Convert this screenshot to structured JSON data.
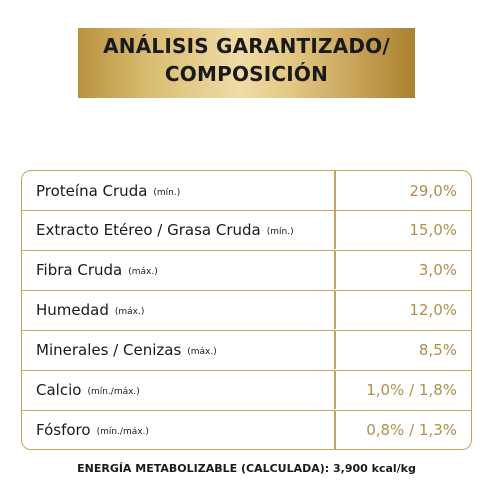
{
  "header": {
    "line1": "ANÁLISIS GARANTIZADO/",
    "line2": "COMPOSICIÓN"
  },
  "rows": [
    {
      "name": "Proteína Cruda",
      "qualifier": "(mín.)",
      "value": "29,0%"
    },
    {
      "name": "Extracto Etéreo / Grasa Cruda",
      "qualifier": "(mín.)",
      "value": "15,0%"
    },
    {
      "name": "Fibra Cruda",
      "qualifier": "(máx.)",
      "value": "3,0%"
    },
    {
      "name": "Humedad",
      "qualifier": "(máx.)",
      "value": "12,0%"
    },
    {
      "name": "Minerales / Cenizas",
      "qualifier": "(máx.)",
      "value": "8,5%"
    },
    {
      "name": "Calcio",
      "qualifier": "(mín./máx.)",
      "value": "1,0% / 1,8%"
    },
    {
      "name": "Fósforo",
      "qualifier": "(mín./máx.)",
      "value": "0,8% / 1,3%"
    }
  ],
  "footer": {
    "energy": "ENERGÍA METABOLIZABLE (CALCULADA): 3,900 kcal/kg"
  },
  "colors": {
    "gold_border": "#c5a55d",
    "gold_value_text": "#b08f49",
    "banner_gold": "#d8bb6f",
    "text": "#1a1a1a"
  }
}
